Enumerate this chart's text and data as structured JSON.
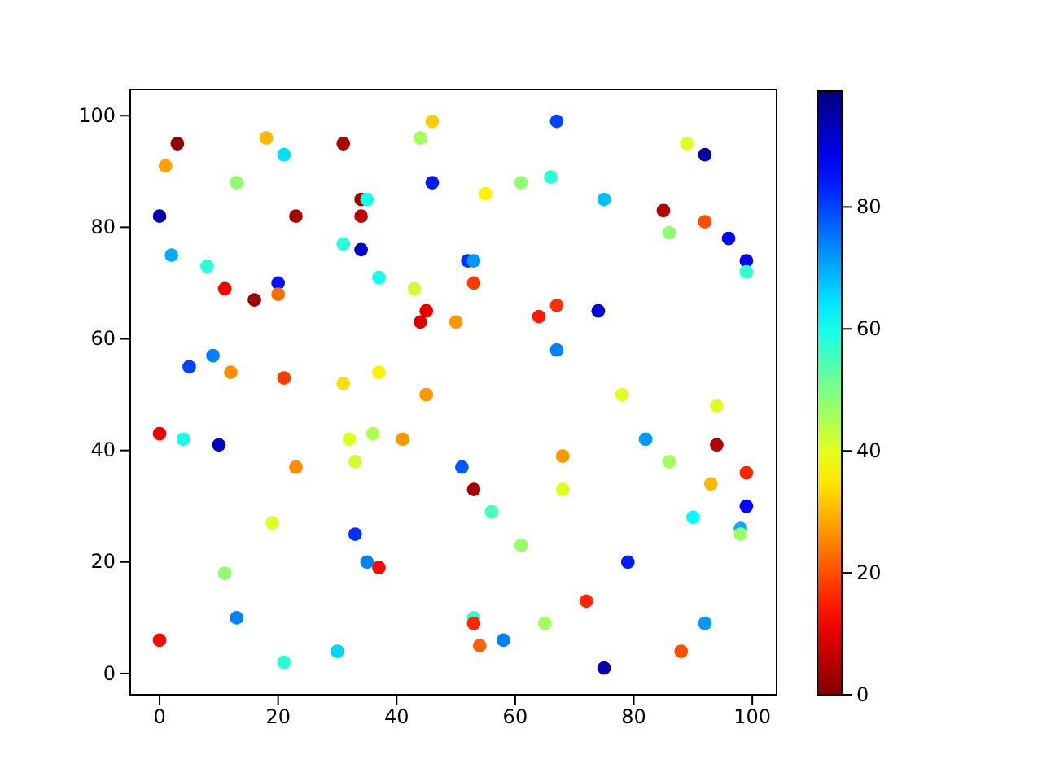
{
  "chart_data": {
    "type": "scatter",
    "marker": "circle",
    "xlim": [
      -4.95,
      104.1
    ],
    "ylim": [
      -3.8,
      104.7
    ],
    "xticks": [
      0,
      20,
      40,
      60,
      80,
      100
    ],
    "yticks": [
      0,
      20,
      40,
      60,
      80,
      100
    ],
    "clim": [
      0,
      99
    ],
    "cticks": [
      0,
      20,
      40,
      60,
      80
    ],
    "grid": false,
    "x": [
      3,
      1,
      18,
      21,
      31,
      13,
      0,
      23,
      31,
      2,
      8,
      11,
      20,
      20,
      16,
      5,
      9,
      12,
      21,
      31,
      46,
      44,
      67,
      46,
      55,
      61,
      66,
      34,
      35,
      34,
      34,
      37,
      43,
      52,
      53,
      53,
      45,
      44,
      50,
      64,
      67,
      67,
      37,
      45,
      89,
      92,
      75,
      85,
      92,
      86,
      96,
      99,
      99,
      74,
      78,
      0,
      4,
      10,
      23,
      32,
      33,
      19,
      33,
      11,
      13,
      0,
      21,
      30,
      36,
      41,
      51,
      53,
      56,
      61,
      35,
      37,
      53,
      53,
      54,
      58,
      65,
      68,
      68,
      94,
      82,
      94,
      86,
      99,
      93,
      99,
      90,
      98,
      98,
      79,
      72,
      92,
      88,
      75
    ],
    "values": [
      95,
      91,
      96,
      93,
      95,
      88,
      82,
      82,
      77,
      75,
      73,
      69,
      70,
      68,
      67,
      55,
      57,
      54,
      53,
      52,
      99,
      96,
      99,
      88,
      86,
      88,
      89,
      85,
      85,
      82,
      76,
      71,
      69,
      74,
      74,
      70,
      65,
      63,
      63,
      64,
      66,
      58,
      54,
      50,
      95,
      93,
      85,
      83,
      81,
      79,
      78,
      74,
      72,
      65,
      50,
      43,
      42,
      41,
      37,
      42,
      38,
      27,
      25,
      18,
      10,
      6,
      2,
      4,
      43,
      42,
      37,
      33,
      29,
      23,
      20,
      19,
      10,
      9,
      5,
      6,
      9,
      39,
      33,
      48,
      42,
      41,
      38,
      36,
      34,
      30,
      28,
      26,
      25,
      20,
      13,
      9,
      4,
      1
    ],
    "cvalues": [
      2,
      28,
      30,
      65,
      4,
      48,
      94,
      4,
      58,
      70,
      58,
      12,
      85,
      23,
      3,
      80,
      74,
      26,
      18,
      34,
      32,
      46,
      80,
      84,
      36,
      48,
      58,
      4,
      60,
      6,
      92,
      60,
      42,
      82,
      72,
      18,
      10,
      9,
      27,
      15,
      17,
      74,
      36,
      27,
      40,
      96,
      68,
      5,
      20,
      48,
      86,
      88,
      57,
      90,
      40,
      11,
      60,
      92,
      26,
      40,
      42,
      40,
      82,
      48,
      74,
      13,
      58,
      66,
      45,
      27,
      78,
      4,
      55,
      47,
      74,
      13,
      57,
      16,
      22,
      74,
      46,
      27,
      40,
      40,
      72,
      5,
      46,
      16,
      30,
      86,
      62,
      70,
      47,
      84,
      16,
      72,
      20,
      94
    ]
  }
}
